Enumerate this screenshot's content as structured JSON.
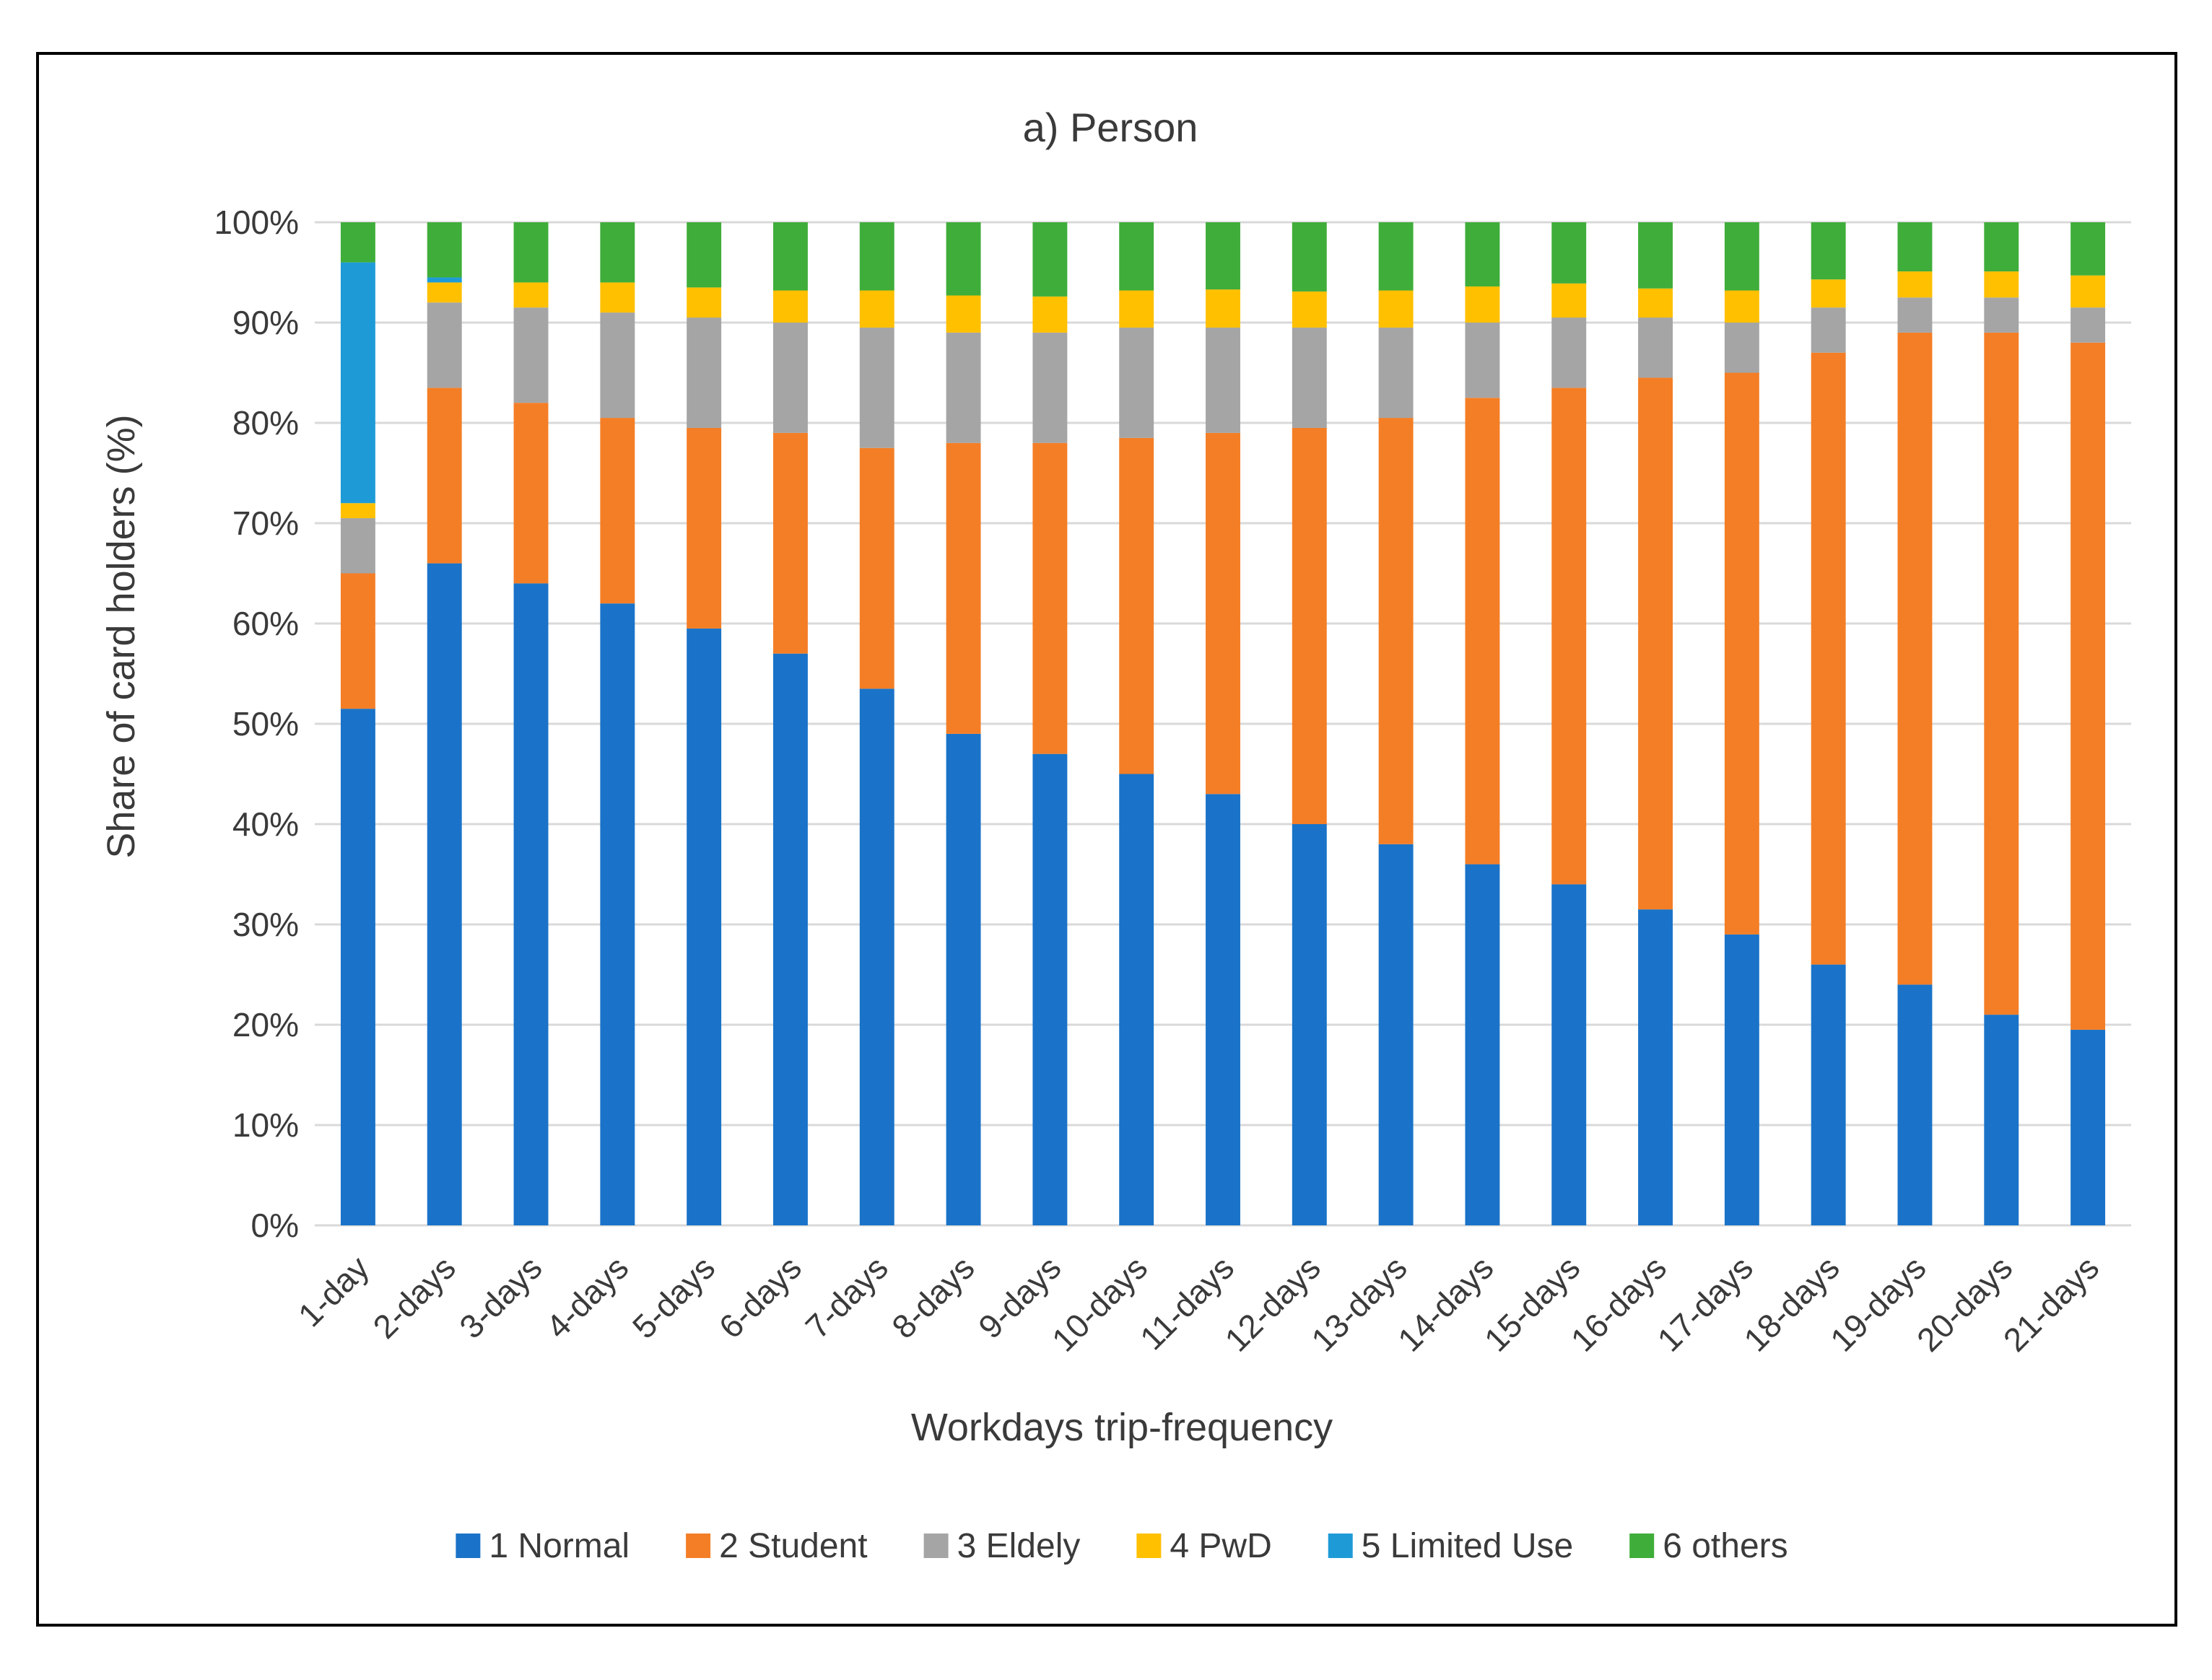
{
  "chart_data": {
    "type": "bar",
    "stacked": true,
    "title": "a) Person",
    "xlabel": "Workdays trip-frequency",
    "ylabel": "Share of card holders (%)",
    "ylim": [
      0,
      100
    ],
    "yticks": [
      "0%",
      "10%",
      "20%",
      "30%",
      "40%",
      "50%",
      "60%",
      "70%",
      "80%",
      "90%",
      "100%"
    ],
    "grid": true,
    "legend_position": "bottom",
    "categories": [
      "1-day",
      "2-days",
      "3-days",
      "4-days",
      "5-days",
      "6-days",
      "7-days",
      "8-days",
      "9-days",
      "10-days",
      "11-days",
      "12-days",
      "13-days",
      "14-days",
      "15-days",
      "16-days",
      "17-days",
      "18-days",
      "19-days",
      "20-days",
      "21-days"
    ],
    "series": [
      {
        "name": "1 Normal",
        "color": "#1a73c8",
        "values": [
          51.5,
          66,
          64,
          62,
          59.5,
          57,
          53.5,
          49,
          47,
          45,
          43,
          40,
          38,
          36,
          34,
          31.5,
          29,
          26,
          24,
          21,
          19.5
        ]
      },
      {
        "name": "2 Student",
        "color": "#f47e26",
        "values": [
          13.5,
          17.5,
          18,
          18.5,
          20,
          22,
          24,
          29,
          31,
          33.5,
          36,
          39.5,
          42.5,
          46.5,
          49.5,
          53,
          56,
          61,
          65,
          68,
          68.5
        ]
      },
      {
        "name": "3 Eldely",
        "color": "#a5a5a5",
        "values": [
          5.5,
          8.5,
          9.5,
          10.5,
          11,
          11,
          12,
          11,
          11,
          11,
          10.5,
          10,
          9,
          7.5,
          7,
          6,
          5,
          4.5,
          3.5,
          3.5,
          3.5
        ]
      },
      {
        "name": "4 PwD",
        "color": "#ffc000",
        "values": [
          1.5,
          2,
          2.5,
          3,
          3,
          3.2,
          3.7,
          3.7,
          3.6,
          3.7,
          3.8,
          3.6,
          3.7,
          3.6,
          3.4,
          2.9,
          3.2,
          2.8,
          2.6,
          2.6,
          3.2
        ]
      },
      {
        "name": "5 Limited Use",
        "color": "#1e9bd7",
        "values": [
          24,
          0.5,
          0,
          0,
          0,
          0,
          0,
          0,
          0,
          0,
          0,
          0,
          0,
          0,
          0,
          0,
          0,
          0,
          0,
          0,
          0
        ]
      },
      {
        "name": "6 others",
        "color": "#3fad3a",
        "values": [
          4,
          5.5,
          6,
          6,
          6.5,
          6.8,
          6.8,
          7.3,
          7.4,
          6.8,
          6.7,
          6.9,
          6.8,
          6.4,
          6.1,
          6.6,
          6.8,
          5.7,
          4.9,
          4.9,
          5.3
        ]
      }
    ]
  }
}
